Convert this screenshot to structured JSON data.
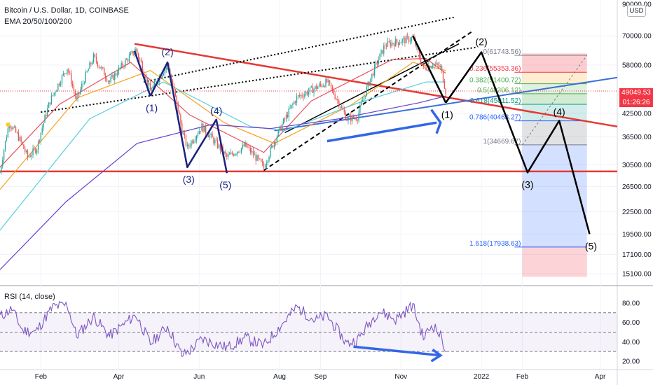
{
  "header": {
    "title": "Bitcoin / U.S. Dollar, 1D, COINBASE",
    "indicator": "EMA 20/50/100/200",
    "currency_button": "USD"
  },
  "price_tag": {
    "price": "49049.53",
    "countdown": "01:26:26"
  },
  "colors": {
    "bull": "#26a69a",
    "bear": "#ef5350",
    "trend": "#e53935",
    "wave_blue": "#1a237e",
    "wave_black": "#000000",
    "arrow_blue": "#3366e6",
    "support_blue": "#3a6fd8",
    "ema20": "#e8505b",
    "ema50": "#f5a31a",
    "ema100": "#56d0dc",
    "ema200": "#6a3fd0",
    "rsi": "#7e57c2"
  },
  "rsi_panel": {
    "label": "RSI (14, close)",
    "levels": [
      30,
      50,
      70
    ]
  },
  "chart_data": {
    "type": "line",
    "title": "Bitcoin / U.S. Dollar, 1D, COINBASE",
    "y_scale": "log",
    "ylim": [
      14000,
      90000
    ],
    "y_ticks": [
      {
        "v": 90000,
        "label": "90000.00"
      },
      {
        "v": 70000,
        "label": "70000.00"
      },
      {
        "v": 58000,
        "label": "58000.00"
      },
      {
        "v": 42500,
        "label": "42500.00"
      },
      {
        "v": 36500,
        "label": "36500.00"
      },
      {
        "v": 30500,
        "label": "30500.00"
      },
      {
        "v": 26500,
        "label": "26500.00"
      },
      {
        "v": 22500,
        "label": "22500.00"
      },
      {
        "v": 19500,
        "label": "19500.00"
      },
      {
        "v": 17100,
        "label": "17100.00"
      },
      {
        "v": 15100,
        "label": "15100.00"
      }
    ],
    "x_ticks": [
      "Feb",
      "Apr",
      "Jun",
      "Aug",
      "Sep",
      "Nov",
      "2022",
      "Feb",
      "Apr"
    ],
    "x_tick_dates": [
      "2021-02-01",
      "2021-04-01",
      "2021-06-01",
      "2021-08-01",
      "2021-09-01",
      "2021-11-01",
      "2022-01-01",
      "2022-02-01",
      "2022-04-01"
    ],
    "price_series": {
      "name": "BTC/USD",
      "points": [
        [
          "2021-01-01",
          29000
        ],
        [
          "2021-01-08",
          40000
        ],
        [
          "2021-01-14",
          37000
        ],
        [
          "2021-01-22",
          32000
        ],
        [
          "2021-01-29",
          34000
        ],
        [
          "2021-02-08",
          46000
        ],
        [
          "2021-02-21",
          57000
        ],
        [
          "2021-02-28",
          46000
        ],
        [
          "2021-03-13",
          61000
        ],
        [
          "2021-03-25",
          52000
        ],
        [
          "2021-04-14",
          64000
        ],
        [
          "2021-04-25",
          49000
        ],
        [
          "2021-05-08",
          58000
        ],
        [
          "2021-05-19",
          38000
        ],
        [
          "2021-05-23",
          34000
        ],
        [
          "2021-06-03",
          39000
        ],
        [
          "2021-06-22",
          32000
        ],
        [
          "2021-07-06",
          34500
        ],
        [
          "2021-07-20",
          30000
        ],
        [
          "2021-08-14",
          47000
        ],
        [
          "2021-09-06",
          52000
        ],
        [
          "2021-09-21",
          41000
        ],
        [
          "2021-09-29",
          41500
        ],
        [
          "2021-10-20",
          66000
        ],
        [
          "2021-11-10",
          69000
        ],
        [
          "2021-11-18",
          56500
        ],
        [
          "2021-11-25",
          58500
        ],
        [
          "2021-12-01",
          57000
        ],
        [
          "2021-12-05",
          49000
        ]
      ]
    },
    "ema_series": [
      {
        "name": "EMA 20",
        "points": [
          [
            "2021-01-01",
            30000
          ],
          [
            "2021-02-15",
            45000
          ],
          [
            "2021-04-10",
            59000
          ],
          [
            "2021-05-25",
            42000
          ],
          [
            "2021-07-20",
            33000
          ],
          [
            "2021-08-25",
            46000
          ],
          [
            "2021-10-25",
            60000
          ],
          [
            "2021-11-20",
            60500
          ],
          [
            "2021-12-05",
            55000
          ]
        ]
      },
      {
        "name": "EMA 50",
        "points": [
          [
            "2021-01-01",
            26000
          ],
          [
            "2021-03-01",
            47000
          ],
          [
            "2021-04-25",
            56000
          ],
          [
            "2021-06-20",
            40000
          ],
          [
            "2021-07-28",
            35000
          ],
          [
            "2021-09-25",
            45000
          ],
          [
            "2021-11-10",
            59000
          ],
          [
            "2021-12-05",
            56000
          ]
        ]
      },
      {
        "name": "EMA 100",
        "points": [
          [
            "2021-01-01",
            20000
          ],
          [
            "2021-03-10",
            41000
          ],
          [
            "2021-05-05",
            52000
          ],
          [
            "2021-07-10",
            39000
          ],
          [
            "2021-08-05",
            38000
          ],
          [
            "2021-09-30",
            45500
          ],
          [
            "2021-11-20",
            52000
          ],
          [
            "2021-12-05",
            52000
          ]
        ]
      },
      {
        "name": "EMA 200",
        "points": [
          [
            "2021-01-01",
            15500
          ],
          [
            "2021-02-20",
            24000
          ],
          [
            "2021-04-15",
            35000
          ],
          [
            "2021-06-10",
            39500
          ],
          [
            "2021-07-25",
            38500
          ],
          [
            "2021-09-15",
            41000
          ],
          [
            "2021-11-15",
            45500
          ],
          [
            "2021-12-05",
            47500
          ]
        ]
      }
    ],
    "wave_counts": {
      "blue": [
        {
          "label": "(1)",
          "date": "2021-04-25",
          "price": 47500
        },
        {
          "label": "(2)",
          "date": "2021-05-08",
          "price": 59000
        },
        {
          "label": "(3)",
          "date": "2021-05-23",
          "price": 30000
        },
        {
          "label": "(4)",
          "date": "2021-06-14",
          "price": 40800
        },
        {
          "label": "(5)",
          "date": "2021-06-22",
          "price": 28900
        }
      ],
      "black": [
        {
          "label": "(1)",
          "date": "2021-12-05",
          "price": 45500
        },
        {
          "label": "(2)",
          "date": "2022-01-01",
          "price": 63000
        },
        {
          "label": "(3)",
          "date": "2022-02-05",
          "price": 29000
        },
        {
          "label": "(4)",
          "date": "2022-03-01",
          "price": 40500
        },
        {
          "label": "(5)",
          "date": "2022-03-24",
          "price": 19500
        }
      ]
    },
    "fibonacci": [
      {
        "label": "0(61743.56)",
        "ratio": 0,
        "price": 61743.56
      },
      {
        "label": "0.236(55353.36)",
        "ratio": 0.236,
        "price": 55353.36
      },
      {
        "label": "0.382(51400.72)",
        "ratio": 0.382,
        "price": 51400.72
      },
      {
        "label": "0.5(48206.12)",
        "ratio": 0.5,
        "price": 48206.12
      },
      {
        "label": "0.618(45011.52)",
        "ratio": 0.618,
        "price": 45011.52
      },
      {
        "label": "0.786(40463.27)",
        "ratio": 0.786,
        "price": 40463.27
      },
      {
        "label": "1(34669.67)",
        "ratio": 1,
        "price": 34669.67
      },
      {
        "label": "1.618(17938.63)",
        "ratio": 1.618,
        "price": 17938.63
      }
    ],
    "rsi": {
      "name": "RSI (14, close)",
      "y_ticks": [
        {
          "v": 80,
          "label": "80.00"
        },
        {
          "v": 60,
          "label": "60.00"
        },
        {
          "v": 40,
          "label": "40.00"
        },
        {
          "v": 20,
          "label": "20.00"
        }
      ],
      "points": [
        [
          "2021-01-01",
          66
        ],
        [
          "2021-01-10",
          74
        ],
        [
          "2021-01-18",
          52
        ],
        [
          "2021-01-28",
          50
        ],
        [
          "2021-02-10",
          76
        ],
        [
          "2021-02-21",
          78
        ],
        [
          "2021-02-28",
          46
        ],
        [
          "2021-03-13",
          66
        ],
        [
          "2021-03-25",
          46
        ],
        [
          "2021-04-14",
          68
        ],
        [
          "2021-04-25",
          38
        ],
        [
          "2021-05-08",
          56
        ],
        [
          "2021-05-19",
          26
        ],
        [
          "2021-05-25",
          31
        ],
        [
          "2021-06-03",
          43
        ],
        [
          "2021-06-22",
          34
        ],
        [
          "2021-07-06",
          44
        ],
        [
          "2021-07-20",
          36
        ],
        [
          "2021-08-14",
          76
        ],
        [
          "2021-08-28",
          62
        ],
        [
          "2021-09-06",
          67
        ],
        [
          "2021-09-21",
          38
        ],
        [
          "2021-09-29",
          42
        ],
        [
          "2021-10-15",
          72
        ],
        [
          "2021-10-28",
          63
        ],
        [
          "2021-11-10",
          78
        ],
        [
          "2021-11-18",
          44
        ],
        [
          "2021-11-25",
          58
        ],
        [
          "2021-12-01",
          46
        ],
        [
          "2021-12-05",
          32
        ]
      ]
    }
  }
}
